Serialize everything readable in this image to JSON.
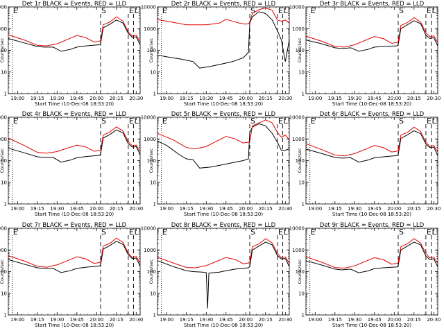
{
  "figure": {
    "colors": {
      "events": "#000000",
      "lld": "#e00000",
      "background": "#ffffff"
    },
    "xtick_labels": [
      "19:00",
      "19:15",
      "19:30",
      "19:45",
      "20:00",
      "20:15",
      "20:30"
    ],
    "ytick_labels": [
      "1",
      "10",
      "100",
      "1000",
      "10000"
    ],
    "xlabel": "Start Time (10-Dec-08 18:53:20)",
    "ylabel": "Counts/sec",
    "markers": [
      "E",
      "S",
      "E",
      "L"
    ]
  },
  "chart_data": [
    {
      "type": "line",
      "title": "Det 1r BLACK = Events, RED = LLD",
      "xlabel": "Start Time (10-Dec-08 18:53:20)",
      "ylabel": "Counts/sec",
      "yscale": "log",
      "ylim": [
        1,
        10000
      ],
      "xlim": [
        "18:53",
        "20:33"
      ],
      "series": [
        {
          "name": "Events",
          "x": [
            "18:53",
            "19:05",
            "19:15",
            "19:20",
            "19:27",
            "19:33",
            "19:40",
            "19:45",
            "19:52",
            "20:02",
            "20:03",
            "20:05",
            "20:10",
            "20:15",
            "20:20",
            "20:24",
            "20:27",
            "20:30",
            "20:33"
          ],
          "values": [
            350,
            220,
            150,
            140,
            140,
            90,
            110,
            140,
            160,
            180,
            200,
            1100,
            1600,
            2500,
            1800,
            600,
            400,
            420,
            180
          ]
        },
        {
          "name": "LLD",
          "x": [
            "18:53",
            "19:05",
            "19:15",
            "19:22",
            "19:30",
            "19:38",
            "19:45",
            "19:52",
            "19:58",
            "20:02",
            "20:03",
            "20:05",
            "20:10",
            "20:15",
            "20:20",
            "20:24",
            "20:27",
            "20:30",
            "20:33"
          ],
          "values": [
            520,
            300,
            170,
            160,
            200,
            320,
            480,
            380,
            240,
            260,
            280,
            1500,
            2000,
            3500,
            2200,
            700,
            450,
            500,
            250
          ]
        }
      ]
    },
    {
      "type": "line",
      "title": "Det 2r BLACK = Events, RED = LLD",
      "xlabel": "Start Time (10-Dec-08 18:53:20)",
      "ylabel": "Counts/sec",
      "yscale": "log",
      "ylim": [
        1,
        10000
      ],
      "xlim": [
        "18:53",
        "20:33"
      ],
      "series": [
        {
          "name": "Events",
          "x": [
            "18:53",
            "19:00",
            "19:10",
            "19:15",
            "19:20",
            "19:25",
            "19:33",
            "19:40",
            "19:50",
            "19:58",
            "20:02",
            "20:03",
            "20:05",
            "20:10",
            "20:15",
            "20:20",
            "20:24",
            "20:27",
            "20:30",
            "20:33"
          ],
          "values": [
            60,
            50,
            40,
            35,
            30,
            15,
            18,
            22,
            30,
            45,
            80,
            1800,
            3500,
            6000,
            5000,
            2500,
            800,
            300,
            30,
            300
          ]
        },
        {
          "name": "LLD",
          "x": [
            "18:53",
            "19:00",
            "19:10",
            "19:15",
            "19:30",
            "19:40",
            "19:45",
            "19:55",
            "20:00",
            "20:02",
            "20:03",
            "20:05",
            "20:10",
            "20:15",
            "20:20",
            "20:24",
            "20:27",
            "20:30",
            "20:33"
          ],
          "values": [
            2600,
            2200,
            1700,
            1500,
            1500,
            1800,
            2700,
            1800,
            1600,
            1700,
            2000,
            5000,
            7500,
            9000,
            7000,
            2500,
            2200,
            2500,
            1800
          ]
        }
      ]
    },
    {
      "type": "line",
      "title": "Det 3r BLACK = Events, RED = LLD",
      "xlabel": "Start Time (10-Dec-08 18:53:20)",
      "ylabel": "Counts/sec",
      "yscale": "log",
      "ylim": [
        1,
        10000
      ],
      "xlim": [
        "18:53",
        "20:33"
      ],
      "series": [
        {
          "name": "Events",
          "x": [
            "18:53",
            "19:05",
            "19:15",
            "19:20",
            "19:27",
            "19:33",
            "19:40",
            "19:45",
            "19:52",
            "20:02",
            "20:03",
            "20:05",
            "20:10",
            "20:15",
            "20:20",
            "20:24",
            "20:27",
            "20:30",
            "20:33"
          ],
          "values": [
            300,
            200,
            130,
            120,
            130,
            90,
            110,
            140,
            150,
            160,
            180,
            1000,
            1500,
            2300,
            1700,
            500,
            350,
            380,
            160
          ]
        },
        {
          "name": "LLD",
          "x": [
            "18:53",
            "19:05",
            "19:15",
            "19:22",
            "19:30",
            "19:38",
            "19:45",
            "19:52",
            "19:58",
            "20:02",
            "20:03",
            "20:05",
            "20:10",
            "20:15",
            "20:20",
            "20:24",
            "20:27",
            "20:30",
            "20:33"
          ],
          "values": [
            450,
            260,
            150,
            140,
            180,
            290,
            430,
            340,
            210,
            230,
            250,
            1400,
            1900,
            3200,
            2000,
            650,
            420,
            460,
            230
          ]
        }
      ]
    },
    {
      "type": "line",
      "title": "Det 4r BLACK = Events, RED = LLD",
      "xlabel": "Start Time (10-Dec-08 18:53:20)",
      "ylabel": "Counts/sec",
      "yscale": "log",
      "ylim": [
        1,
        10000
      ],
      "xlim": [
        "18:53",
        "20:33"
      ],
      "series": [
        {
          "name": "Events",
          "x": [
            "18:53",
            "19:05",
            "19:15",
            "19:20",
            "19:27",
            "19:33",
            "19:40",
            "19:45",
            "19:52",
            "20:02",
            "20:03",
            "20:05",
            "20:10",
            "20:15",
            "20:20",
            "20:24",
            "20:27",
            "20:30",
            "20:33"
          ],
          "values": [
            370,
            230,
            150,
            140,
            140,
            85,
            105,
            135,
            155,
            175,
            200,
            1100,
            1600,
            2600,
            1900,
            600,
            420,
            440,
            190
          ]
        },
        {
          "name": "LLD",
          "x": [
            "18:53",
            "19:05",
            "19:15",
            "19:22",
            "19:30",
            "19:38",
            "19:45",
            "19:52",
            "19:58",
            "20:02",
            "20:03",
            "20:05",
            "20:10",
            "20:15",
            "20:20",
            "20:24",
            "20:27",
            "20:30",
            "20:33"
          ],
          "values": [
            1100,
            500,
            240,
            220,
            260,
            380,
            520,
            420,
            270,
            290,
            310,
            1500,
            2100,
            3600,
            2300,
            750,
            480,
            520,
            260
          ]
        }
      ]
    },
    {
      "type": "line",
      "title": "Det 5r BLACK = Events, RED = LLD",
      "xlabel": "Start Time (10-Dec-08 18:53:20)",
      "ylabel": "Counts/sec",
      "yscale": "log",
      "ylim": [
        1,
        10000
      ],
      "xlim": [
        "18:53",
        "20:33"
      ],
      "series": [
        {
          "name": "Events",
          "x": [
            "18:53",
            "19:00",
            "19:10",
            "19:15",
            "19:20",
            "19:25",
            "19:33",
            "19:40",
            "19:50",
            "19:58",
            "20:02",
            "20:03",
            "20:05",
            "20:10",
            "20:15",
            "20:20",
            "20:24",
            "20:27",
            "20:30",
            "20:33"
          ],
          "values": [
            800,
            500,
            180,
            120,
            110,
            45,
            50,
            60,
            80,
            100,
            120,
            2000,
            3500,
            5000,
            4000,
            1800,
            700,
            300,
            300,
            350
          ]
        },
        {
          "name": "LLD",
          "x": [
            "18:53",
            "19:05",
            "19:15",
            "19:22",
            "19:30",
            "19:38",
            "19:45",
            "19:52",
            "19:58",
            "20:02",
            "20:03",
            "20:05",
            "20:10",
            "20:15",
            "20:20",
            "20:24",
            "20:27",
            "20:30",
            "20:33"
          ],
          "values": [
            1800,
            900,
            400,
            350,
            450,
            800,
            1300,
            1000,
            650,
            700,
            750,
            4000,
            5500,
            7500,
            5500,
            2000,
            1200,
            1500,
            900
          ]
        }
      ]
    },
    {
      "type": "line",
      "title": "Det 6r BLACK = Events, RED = LLD",
      "xlabel": "Start Time (10-Dec-08 18:53:20)",
      "ylabel": "Counts/sec",
      "yscale": "log",
      "ylim": [
        1,
        10000
      ],
      "xlim": [
        "18:53",
        "20:33"
      ],
      "series": [
        {
          "name": "Events",
          "x": [
            "18:53",
            "19:05",
            "19:15",
            "19:20",
            "19:27",
            "19:33",
            "19:40",
            "19:45",
            "19:52",
            "20:02",
            "20:03",
            "20:05",
            "20:10",
            "20:15",
            "20:20",
            "20:24",
            "20:27",
            "20:30",
            "20:33"
          ],
          "values": [
            340,
            210,
            140,
            130,
            135,
            85,
            105,
            135,
            150,
            170,
            190,
            1050,
            1550,
            2400,
            1750,
            580,
            400,
            420,
            170
          ]
        },
        {
          "name": "LLD",
          "x": [
            "18:53",
            "19:05",
            "19:15",
            "19:22",
            "19:30",
            "19:38",
            "19:45",
            "19:52",
            "19:58",
            "20:02",
            "20:03",
            "20:05",
            "20:10",
            "20:15",
            "20:20",
            "20:24",
            "20:27",
            "20:30",
            "20:33"
          ],
          "values": [
            600,
            320,
            180,
            165,
            210,
            330,
            500,
            390,
            250,
            270,
            290,
            1500,
            2000,
            3500,
            2200,
            700,
            450,
            500,
            250
          ]
        }
      ]
    },
    {
      "type": "line",
      "title": "Det 7r BLACK = Events, RED = LLD",
      "xlabel": "Start Time (10-Dec-08 18:53:20)",
      "ylabel": "Counts/sec",
      "yscale": "log",
      "ylim": [
        1,
        10000
      ],
      "xlim": [
        "18:53",
        "20:33"
      ],
      "series": [
        {
          "name": "Events",
          "x": [
            "18:53",
            "19:05",
            "19:15",
            "19:20",
            "19:27",
            "19:33",
            "19:40",
            "19:45",
            "19:52",
            "20:02",
            "20:03",
            "20:05",
            "20:10",
            "20:15",
            "20:20",
            "20:24",
            "20:27",
            "20:30",
            "20:33"
          ],
          "values": [
            360,
            220,
            150,
            140,
            140,
            90,
            110,
            140,
            160,
            180,
            200,
            1100,
            1600,
            2500,
            1800,
            600,
            400,
            420,
            180
          ]
        },
        {
          "name": "LLD",
          "x": [
            "18:53",
            "19:05",
            "19:15",
            "19:22",
            "19:30",
            "19:38",
            "19:45",
            "19:52",
            "19:58",
            "20:02",
            "20:03",
            "20:05",
            "20:10",
            "20:15",
            "20:20",
            "20:24",
            "20:27",
            "20:30",
            "20:33"
          ],
          "values": [
            540,
            310,
            175,
            160,
            205,
            320,
            480,
            380,
            240,
            260,
            280,
            1500,
            2000,
            3500,
            2200,
            700,
            450,
            500,
            250
          ]
        }
      ]
    },
    {
      "type": "line",
      "title": "Det 8r BLACK = Events, RED = LLD",
      "xlabel": "Start Time (10-Dec-08 18:53:20)",
      "ylabel": "Counts/sec",
      "yscale": "log",
      "ylim": [
        1,
        10000
      ],
      "xlim": [
        "18:53",
        "20:33"
      ],
      "series": [
        {
          "name": "Events",
          "x": [
            "18:53",
            "19:05",
            "19:15",
            "19:20",
            "19:27",
            "19:30",
            "19:31",
            "19:32",
            "19:40",
            "19:45",
            "19:52",
            "20:02",
            "20:03",
            "20:05",
            "20:10",
            "20:15",
            "20:20",
            "20:24",
            "20:27",
            "20:30",
            "20:33"
          ],
          "values": [
            320,
            170,
            110,
            100,
            95,
            90,
            2,
            85,
            95,
            110,
            130,
            150,
            170,
            1000,
            1500,
            2300,
            1700,
            550,
            380,
            400,
            170
          ]
        },
        {
          "name": "LLD",
          "x": [
            "18:53",
            "19:05",
            "19:15",
            "19:22",
            "19:30",
            "19:38",
            "19:45",
            "19:52",
            "19:58",
            "20:02",
            "20:03",
            "20:05",
            "20:10",
            "20:15",
            "20:20",
            "20:24",
            "20:27",
            "20:30",
            "20:33"
          ],
          "values": [
            460,
            250,
            155,
            150,
            190,
            300,
            450,
            360,
            230,
            250,
            270,
            1400,
            1900,
            3300,
            2100,
            680,
            430,
            470,
            240
          ]
        }
      ]
    },
    {
      "type": "line",
      "title": "Det 9r BLACK = Events, RED = LLD",
      "xlabel": "Start Time (10-Dec-08 18:53:20)",
      "ylabel": "Counts/sec",
      "yscale": "log",
      "ylim": [
        1,
        10000
      ],
      "xlim": [
        "18:53",
        "20:33"
      ],
      "series": [
        {
          "name": "Events",
          "x": [
            "18:53",
            "19:05",
            "19:15",
            "19:20",
            "19:27",
            "19:33",
            "19:40",
            "19:45",
            "19:52",
            "20:02",
            "20:03",
            "20:05",
            "20:10",
            "20:15",
            "20:20",
            "20:24",
            "20:27",
            "20:30",
            "20:33"
          ],
          "values": [
            320,
            200,
            130,
            120,
            130,
            88,
            108,
            138,
            150,
            165,
            185,
            1000,
            1500,
            2300,
            1700,
            520,
            360,
            390,
            165
          ]
        },
        {
          "name": "LLD",
          "x": [
            "18:53",
            "19:05",
            "19:15",
            "19:22",
            "19:30",
            "19:38",
            "19:45",
            "19:52",
            "19:58",
            "20:02",
            "20:03",
            "20:05",
            "20:10",
            "20:15",
            "20:20",
            "20:24",
            "20:27",
            "20:30",
            "20:33"
          ],
          "values": [
            480,
            270,
            155,
            145,
            185,
            295,
            440,
            350,
            220,
            240,
            260,
            1400,
            1900,
            3300,
            2100,
            680,
            430,
            470,
            240
          ]
        }
      ]
    }
  ]
}
